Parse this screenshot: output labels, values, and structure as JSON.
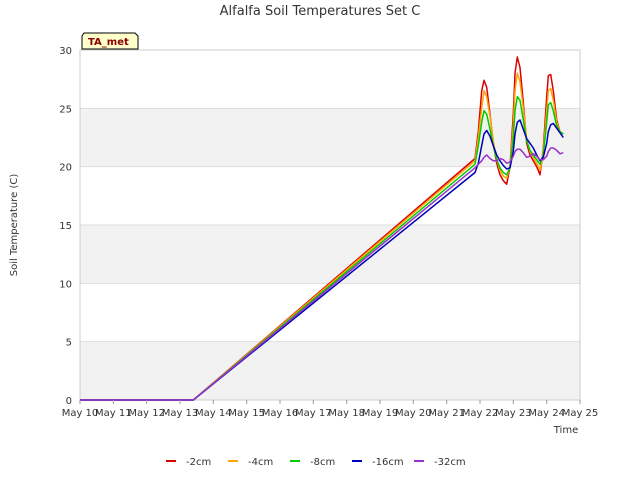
{
  "chart_data": {
    "type": "line",
    "title": "Alfalfa Soil Temperatures Set C",
    "xlabel": "Time",
    "ylabel": "Soil Temperature (C)",
    "site_label": "TA_met",
    "xlim": [
      10,
      25
    ],
    "ylim": [
      0,
      30
    ],
    "x_ticks": [
      {
        "value": 10,
        "label": "May 10"
      },
      {
        "value": 11,
        "label": "May 11"
      },
      {
        "value": 12,
        "label": "May 12"
      },
      {
        "value": 13,
        "label": "May 13"
      },
      {
        "value": 14,
        "label": "May 14"
      },
      {
        "value": 15,
        "label": "May 15"
      },
      {
        "value": 16,
        "label": "May 16"
      },
      {
        "value": 17,
        "label": "May 17"
      },
      {
        "value": 18,
        "label": "May 18"
      },
      {
        "value": 19,
        "label": "May 19"
      },
      {
        "value": 20,
        "label": "May 20"
      },
      {
        "value": 21,
        "label": "May 21"
      },
      {
        "value": 22,
        "label": "May 22"
      },
      {
        "value": 23,
        "label": "May 23"
      },
      {
        "value": 24,
        "label": "May 24"
      },
      {
        "value": 25,
        "label": "May 25"
      }
    ],
    "y_ticks": [
      0,
      5,
      10,
      15,
      20,
      25,
      30
    ],
    "series": [
      {
        "name": "-2cm",
        "color": "#dd0000",
        "x": [
          10.0,
          13.4,
          21.85,
          21.95,
          22.05,
          22.12,
          22.2,
          22.3,
          22.4,
          22.5,
          22.6,
          22.7,
          22.8,
          22.9,
          23.0,
          23.05,
          23.12,
          23.2,
          23.3,
          23.4,
          23.5,
          23.6,
          23.7,
          23.8,
          23.9,
          24.0,
          24.05,
          24.12,
          24.2,
          24.3,
          24.4,
          24.5
        ],
        "y": [
          0,
          0,
          20.7,
          23.0,
          26.5,
          27.4,
          26.8,
          24.5,
          22.0,
          20.3,
          19.3,
          18.8,
          18.5,
          20.0,
          24.5,
          28.0,
          29.4,
          28.5,
          25.5,
          22.0,
          21.0,
          20.5,
          20.0,
          19.3,
          21.5,
          26.0,
          27.8,
          27.9,
          26.5,
          24.0,
          23.0,
          22.8
        ]
      },
      {
        "name": "-4cm",
        "color": "#ffa500",
        "x": [
          10.0,
          13.4,
          21.85,
          21.95,
          22.05,
          22.12,
          22.2,
          22.3,
          22.4,
          22.5,
          22.6,
          22.7,
          22.8,
          22.9,
          23.0,
          23.05,
          23.12,
          23.2,
          23.3,
          23.4,
          23.5,
          23.6,
          23.7,
          23.8,
          23.9,
          24.0,
          24.05,
          24.12,
          24.2,
          24.3,
          24.4,
          24.5
        ],
        "y": [
          0,
          0,
          20.5,
          22.5,
          25.0,
          26.5,
          26.0,
          24.3,
          22.2,
          20.6,
          19.7,
          19.2,
          19.0,
          20.0,
          23.5,
          26.5,
          28.0,
          27.3,
          25.0,
          22.3,
          21.3,
          20.8,
          20.3,
          19.7,
          21.3,
          24.8,
          26.5,
          26.7,
          25.7,
          23.8,
          23.0,
          22.8
        ]
      },
      {
        "name": "-8cm",
        "color": "#00cc00",
        "x": [
          10.0,
          13.4,
          21.85,
          21.95,
          22.05,
          22.12,
          22.2,
          22.3,
          22.4,
          22.5,
          22.6,
          22.7,
          22.8,
          22.9,
          23.0,
          23.05,
          23.12,
          23.2,
          23.3,
          23.4,
          23.5,
          23.6,
          23.7,
          23.8,
          23.9,
          24.0,
          24.05,
          24.12,
          24.2,
          24.3,
          24.4,
          24.5
        ],
        "y": [
          0,
          0,
          20.2,
          21.8,
          23.8,
          24.8,
          24.5,
          23.2,
          21.8,
          20.6,
          19.9,
          19.5,
          19.3,
          19.9,
          22.5,
          24.8,
          26.0,
          25.7,
          24.0,
          22.2,
          21.4,
          21.0,
          20.6,
          20.2,
          21.0,
          23.8,
          25.3,
          25.5,
          24.8,
          23.5,
          23.0,
          22.8
        ]
      },
      {
        "name": "-16cm",
        "color": "#0000bb",
        "x": [
          10.0,
          13.4,
          21.85,
          21.95,
          22.05,
          22.12,
          22.2,
          22.3,
          22.4,
          22.5,
          22.6,
          22.7,
          22.8,
          22.9,
          23.0,
          23.05,
          23.12,
          23.2,
          23.3,
          23.4,
          23.5,
          23.6,
          23.7,
          23.8,
          23.9,
          24.0,
          24.05,
          24.12,
          24.2,
          24.3,
          24.4,
          24.5
        ],
        "y": [
          0,
          0,
          19.5,
          20.3,
          21.8,
          22.8,
          23.1,
          22.6,
          21.8,
          21.0,
          20.5,
          20.1,
          19.8,
          19.9,
          21.3,
          22.8,
          23.8,
          24.0,
          23.2,
          22.4,
          22.0,
          21.6,
          21.0,
          20.5,
          20.8,
          22.0,
          23.0,
          23.6,
          23.7,
          23.3,
          22.9,
          22.5
        ]
      },
      {
        "name": "-32cm",
        "color": "#9932cc",
        "x": [
          10.0,
          13.4,
          21.85,
          21.95,
          22.05,
          22.12,
          22.2,
          22.3,
          22.4,
          22.5,
          22.6,
          22.7,
          22.8,
          22.9,
          23.0,
          23.05,
          23.12,
          23.2,
          23.3,
          23.4,
          23.5,
          23.6,
          23.7,
          23.8,
          23.9,
          24.0,
          24.05,
          24.12,
          24.2,
          24.3,
          24.4,
          24.5
        ],
        "y": [
          0,
          0,
          19.9,
          20.2,
          20.5,
          20.8,
          21.0,
          20.7,
          20.5,
          20.5,
          20.7,
          20.6,
          20.3,
          20.4,
          20.9,
          21.3,
          21.5,
          21.5,
          21.2,
          20.8,
          20.9,
          21.1,
          20.9,
          20.6,
          20.6,
          20.9,
          21.3,
          21.6,
          21.6,
          21.4,
          21.1,
          21.2
        ]
      }
    ]
  }
}
